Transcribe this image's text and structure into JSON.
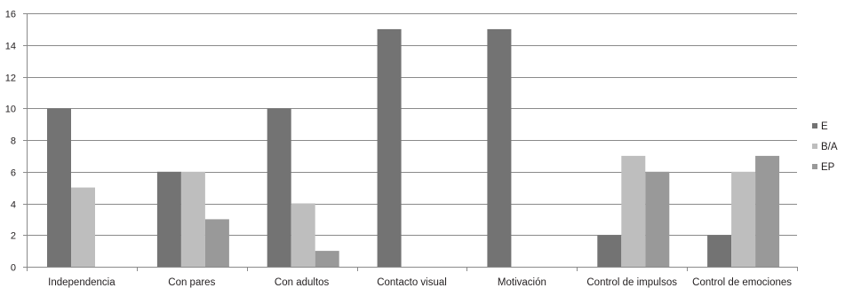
{
  "chart_data": {
    "type": "bar",
    "categories": [
      "Independencia",
      "Con pares",
      "Con adultos",
      "Contacto visual",
      "Motivación",
      "Control de impulsos",
      "Control de emociones"
    ],
    "series": [
      {
        "name": "E",
        "color": "#737373",
        "values": [
          10,
          6,
          10,
          15,
          15,
          2,
          2
        ]
      },
      {
        "name": "B/A",
        "color": "#bebebe",
        "values": [
          5,
          6,
          4,
          0,
          0,
          7,
          6
        ]
      },
      {
        "name": "EP",
        "color": "#999999",
        "values": [
          0,
          3,
          1,
          0,
          0,
          6,
          7
        ]
      }
    ],
    "yticks": [
      "0",
      "2",
      "4",
      "6",
      "8",
      "10",
      "12",
      "14",
      "16"
    ],
    "ylim": [
      0,
      16
    ],
    "grid": true,
    "legend_position": "right"
  }
}
